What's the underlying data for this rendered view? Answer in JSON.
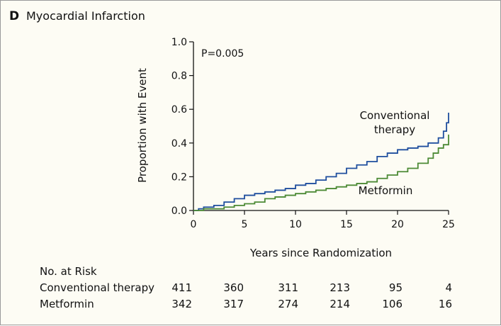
{
  "panel_letter": "D",
  "panel_title": "Myocardial Infarction",
  "chart_data": {
    "type": "line",
    "title": "Myocardial Infarction",
    "xlabel": "Years since Randomization",
    "ylabel": "Proportion with Event",
    "xlim": [
      0,
      25
    ],
    "ylim": [
      0,
      1.0
    ],
    "x_ticks": [
      "0",
      "5",
      "10",
      "15",
      "20",
      "25"
    ],
    "y_ticks": [
      "0.0",
      "0.2",
      "0.4",
      "0.6",
      "0.8",
      "1.0"
    ],
    "annotation": "P=0.005",
    "series": [
      {
        "name": "Conventional therapy",
        "label_lines": [
          "Conventional",
          "therapy"
        ],
        "color": "#1f4e9e",
        "step": true,
        "points": [
          [
            0,
            0
          ],
          [
            0.5,
            0.01
          ],
          [
            1,
            0.02
          ],
          [
            2,
            0.03
          ],
          [
            3,
            0.05
          ],
          [
            4,
            0.07
          ],
          [
            5,
            0.09
          ],
          [
            6,
            0.1
          ],
          [
            7,
            0.11
          ],
          [
            8,
            0.12
          ],
          [
            9,
            0.13
          ],
          [
            10,
            0.15
          ],
          [
            11,
            0.16
          ],
          [
            12,
            0.18
          ],
          [
            13,
            0.2
          ],
          [
            14,
            0.22
          ],
          [
            15,
            0.25
          ],
          [
            16,
            0.27
          ],
          [
            17,
            0.29
          ],
          [
            18,
            0.32
          ],
          [
            19,
            0.34
          ],
          [
            20,
            0.36
          ],
          [
            21,
            0.37
          ],
          [
            22,
            0.38
          ],
          [
            23,
            0.4
          ],
          [
            24,
            0.43
          ],
          [
            24.5,
            0.47
          ],
          [
            24.8,
            0.52
          ],
          [
            25,
            0.58
          ]
        ]
      },
      {
        "name": "Metformin",
        "label_lines": [
          "Metformin"
        ],
        "color": "#4c8a35",
        "step": true,
        "points": [
          [
            0,
            0
          ],
          [
            1,
            0.01
          ],
          [
            2,
            0.01
          ],
          [
            3,
            0.02
          ],
          [
            4,
            0.03
          ],
          [
            5,
            0.04
          ],
          [
            6,
            0.05
          ],
          [
            7,
            0.07
          ],
          [
            8,
            0.08
          ],
          [
            9,
            0.09
          ],
          [
            10,
            0.1
          ],
          [
            11,
            0.11
          ],
          [
            12,
            0.12
          ],
          [
            13,
            0.13
          ],
          [
            14,
            0.14
          ],
          [
            15,
            0.15
          ],
          [
            16,
            0.16
          ],
          [
            17,
            0.17
          ],
          [
            18,
            0.19
          ],
          [
            19,
            0.21
          ],
          [
            20,
            0.23
          ],
          [
            21,
            0.25
          ],
          [
            22,
            0.28
          ],
          [
            23,
            0.31
          ],
          [
            23.5,
            0.34
          ],
          [
            24,
            0.37
          ],
          [
            24.5,
            0.39
          ],
          [
            25,
            0.39
          ],
          [
            25,
            0.45
          ]
        ]
      }
    ]
  },
  "risk_table": {
    "heading": "No. at Risk",
    "rows": [
      {
        "label": "Conventional therapy",
        "values": [
          "411",
          "360",
          "311",
          "213",
          "95",
          "4"
        ]
      },
      {
        "label": "Metformin",
        "values": [
          "342",
          "317",
          "274",
          "214",
          "106",
          "16"
        ]
      }
    ]
  }
}
